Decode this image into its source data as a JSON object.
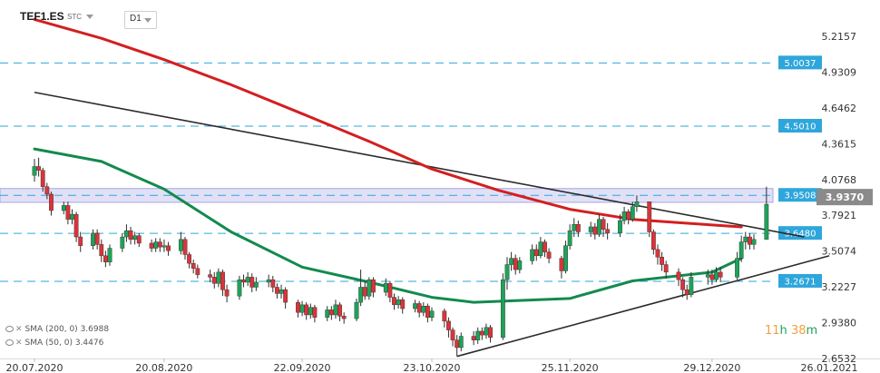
{
  "header": {
    "symbol": "TEF1.ES",
    "price_type": "STC",
    "timeframe": "D1"
  },
  "legend": [
    {
      "label": "SMA (200, 0)",
      "value": "3.6988"
    },
    {
      "label": "SMA (50, 0)",
      "value": "3.4476"
    }
  ],
  "countdown": {
    "hours": "11",
    "h_unit": "h",
    "minutes": "38",
    "m_unit": "m"
  },
  "colors": {
    "up": "#1ea25a",
    "down": "#d9343a",
    "sma200": "#d31f1f",
    "sma50": "#138a4e",
    "level_line": "#2ea6db",
    "level_label_bg": "#2ea6db",
    "zone": "#c9c7ef",
    "current_price_bg": "#8a8a8a"
  },
  "chart_data": {
    "type": "candlestick",
    "symbol": "TEF1.ES",
    "timeframe": "D1",
    "y_ticks": [
      "5.2157",
      "4.9309",
      "4.6462",
      "4.3615",
      "4.0768",
      "3.7921",
      "3.5074",
      "3.2227",
      "2.9380",
      "2.6532"
    ],
    "ylim": [
      2.6532,
      5.36
    ],
    "x_ticks": [
      "20.07.2020",
      "20.08.2020",
      "22.09.2020",
      "23.10.2020",
      "25.11.2020",
      "29.12.2020",
      "26.01.2021"
    ],
    "current_price": "3.9370",
    "levels": [
      {
        "value": 5.0037,
        "label": "5.0037"
      },
      {
        "value": 4.501,
        "label": "4.5010"
      },
      {
        "value": 3.9508,
        "label": "3.9508"
      },
      {
        "value": 3.648,
        "label": "3.6480"
      },
      {
        "value": 3.2671,
        "label": "3.2671"
      }
    ],
    "zone": [
      3.895,
      4.005
    ],
    "trendlines": [
      {
        "name": "descending",
        "from": [
          "2020-07-20",
          4.77
        ],
        "to": [
          "2021-01-20",
          3.62
        ]
      },
      {
        "name": "ascending",
        "from": [
          "2020-10-29",
          2.67
        ],
        "to": [
          "2021-01-26",
          3.47
        ]
      }
    ],
    "series": [
      {
        "name": "SMA (200, 0)",
        "points": [
          [
            "2020-07-20",
            5.35
          ],
          [
            "2020-08-05",
            5.2
          ],
          [
            "2020-08-20",
            5.03
          ],
          [
            "2020-09-05",
            4.83
          ],
          [
            "2020-09-22",
            4.6
          ],
          [
            "2020-10-08",
            4.38
          ],
          [
            "2020-10-23",
            4.16
          ],
          [
            "2020-11-08",
            3.99
          ],
          [
            "2020-11-25",
            3.84
          ],
          [
            "2020-12-10",
            3.76
          ],
          [
            "2020-12-29",
            3.715
          ],
          [
            "2021-01-05",
            3.7
          ]
        ]
      },
      {
        "name": "SMA (50, 0)",
        "points": [
          [
            "2020-07-20",
            4.32
          ],
          [
            "2020-08-05",
            4.22
          ],
          [
            "2020-08-20",
            4.0
          ],
          [
            "2020-09-05",
            3.66
          ],
          [
            "2020-09-22",
            3.38
          ],
          [
            "2020-10-08",
            3.26
          ],
          [
            "2020-10-23",
            3.14
          ],
          [
            "2020-11-02",
            3.1
          ],
          [
            "2020-11-25",
            3.13
          ],
          [
            "2020-12-10",
            3.27
          ],
          [
            "2020-12-29",
            3.34
          ],
          [
            "2021-01-05",
            3.45
          ]
        ]
      }
    ],
    "candles": [
      [
        "2020-07-20",
        4.11,
        4.18,
        4.24,
        4.06
      ],
      [
        "2020-07-21",
        4.18,
        4.15,
        4.25,
        4.1
      ],
      [
        "2020-07-22",
        4.15,
        4.02,
        4.17,
        3.98
      ],
      [
        "2020-07-23",
        4.02,
        3.96,
        4.05,
        3.92
      ],
      [
        "2020-07-24",
        3.96,
        3.83,
        3.98,
        3.79
      ],
      [
        "2020-07-27",
        3.83,
        3.87,
        3.9,
        3.8
      ],
      [
        "2020-07-28",
        3.87,
        3.76,
        3.9,
        3.72
      ],
      [
        "2020-07-29",
        3.76,
        3.8,
        3.84,
        3.72
      ],
      [
        "2020-07-30",
        3.8,
        3.62,
        3.82,
        3.58
      ],
      [
        "2020-07-31",
        3.62,
        3.55,
        3.66,
        3.5
      ],
      [
        "2020-08-03",
        3.55,
        3.65,
        3.68,
        3.52
      ],
      [
        "2020-08-04",
        3.65,
        3.56,
        3.68,
        3.52
      ],
      [
        "2020-08-05",
        3.56,
        3.47,
        3.6,
        3.42
      ],
      [
        "2020-08-06",
        3.47,
        3.42,
        3.51,
        3.38
      ],
      [
        "2020-08-07",
        3.42,
        3.53,
        3.56,
        3.39
      ],
      [
        "2020-08-10",
        3.53,
        3.62,
        3.65,
        3.5
      ],
      [
        "2020-08-11",
        3.62,
        3.67,
        3.72,
        3.58
      ],
      [
        "2020-08-12",
        3.67,
        3.6,
        3.7,
        3.56
      ],
      [
        "2020-08-13",
        3.6,
        3.63,
        3.66,
        3.56
      ],
      [
        "2020-08-14",
        3.63,
        3.57,
        3.65,
        3.54
      ],
      [
        "2020-08-17",
        3.57,
        3.53,
        3.6,
        3.5
      ],
      [
        "2020-08-18",
        3.53,
        3.58,
        3.61,
        3.5
      ],
      [
        "2020-08-19",
        3.58,
        3.54,
        3.61,
        3.5
      ],
      [
        "2020-08-20",
        3.54,
        3.55,
        3.6,
        3.5
      ],
      [
        "2020-08-21",
        3.55,
        3.51,
        3.58,
        3.47
      ],
      [
        "2020-08-24",
        3.51,
        3.6,
        3.66,
        3.48
      ],
      [
        "2020-08-25",
        3.6,
        3.48,
        3.62,
        3.44
      ],
      [
        "2020-08-26",
        3.48,
        3.41,
        3.5,
        3.37
      ],
      [
        "2020-08-27",
        3.41,
        3.37,
        3.44,
        3.33
      ],
      [
        "2020-08-28",
        3.37,
        3.32,
        3.4,
        3.29
      ],
      [
        "2020-08-31",
        3.32,
        3.3,
        3.36,
        3.26
      ],
      [
        "2020-09-01",
        3.3,
        3.25,
        3.34,
        3.21
      ],
      [
        "2020-09-02",
        3.25,
        3.34,
        3.37,
        3.22
      ],
      [
        "2020-09-03",
        3.34,
        3.2,
        3.36,
        3.15
      ],
      [
        "2020-09-04",
        3.2,
        3.15,
        3.24,
        3.1
      ],
      [
        "2020-09-07",
        3.15,
        3.28,
        3.31,
        3.12
      ],
      [
        "2020-09-08",
        3.28,
        3.26,
        3.32,
        3.22
      ],
      [
        "2020-09-09",
        3.26,
        3.3,
        3.34,
        3.23
      ],
      [
        "2020-09-10",
        3.3,
        3.22,
        3.33,
        3.18
      ],
      [
        "2020-09-11",
        3.22,
        3.26,
        3.3,
        3.19
      ],
      [
        "2020-09-14",
        3.26,
        3.28,
        3.32,
        3.22
      ],
      [
        "2020-09-15",
        3.28,
        3.22,
        3.31,
        3.18
      ],
      [
        "2020-09-16",
        3.22,
        3.17,
        3.25,
        3.13
      ],
      [
        "2020-09-17",
        3.17,
        3.2,
        3.24,
        3.13
      ],
      [
        "2020-09-18",
        3.2,
        3.1,
        3.22,
        3.05
      ],
      [
        "2020-09-21",
        3.1,
        3.02,
        3.12,
        2.98
      ],
      [
        "2020-09-22",
        3.02,
        3.08,
        3.11,
        2.99
      ],
      [
        "2020-09-23",
        3.08,
        3.0,
        3.1,
        2.96
      ],
      [
        "2020-09-24",
        3.0,
        3.06,
        3.09,
        2.97
      ],
      [
        "2020-09-25",
        3.06,
        2.98,
        3.08,
        2.94
      ],
      [
        "2020-09-28",
        2.98,
        3.04,
        3.07,
        2.95
      ],
      [
        "2020-09-29",
        3.04,
        3.0,
        3.07,
        2.96
      ],
      [
        "2020-09-30",
        3.0,
        3.08,
        3.12,
        2.97
      ],
      [
        "2020-10-01",
        3.08,
        2.99,
        3.1,
        2.95
      ],
      [
        "2020-10-02",
        2.99,
        2.97,
        3.02,
        2.93
      ],
      [
        "2020-10-05",
        2.97,
        3.1,
        3.13,
        2.95
      ],
      [
        "2020-10-06",
        3.1,
        3.22,
        3.36,
        3.07
      ],
      [
        "2020-10-07",
        3.22,
        3.15,
        3.27,
        3.12
      ],
      [
        "2020-10-08",
        3.15,
        3.28,
        3.3,
        3.12
      ],
      [
        "2020-10-09",
        3.28,
        3.18,
        3.3,
        3.14
      ],
      [
        "2020-10-12",
        3.18,
        3.25,
        3.29,
        3.15
      ],
      [
        "2020-10-13",
        3.25,
        3.14,
        3.27,
        3.1
      ],
      [
        "2020-10-14",
        3.14,
        3.08,
        3.17,
        3.04
      ],
      [
        "2020-10-15",
        3.08,
        3.12,
        3.15,
        3.05
      ],
      [
        "2020-10-16",
        3.12,
        3.05,
        3.14,
        3.01
      ],
      [
        "2020-10-19",
        3.05,
        3.09,
        3.12,
        3.02
      ],
      [
        "2020-10-20",
        3.09,
        3.02,
        3.11,
        2.98
      ],
      [
        "2020-10-21",
        3.02,
        3.07,
        3.1,
        2.99
      ],
      [
        "2020-10-22",
        3.07,
        2.98,
        3.09,
        2.94
      ],
      [
        "2020-10-23",
        2.98,
        3.03,
        3.06,
        2.95
      ],
      [
        "2020-10-26",
        3.03,
        2.95,
        3.05,
        2.9
      ],
      [
        "2020-10-27",
        2.95,
        2.88,
        2.98,
        2.82
      ],
      [
        "2020-10-28",
        2.88,
        2.8,
        2.9,
        2.75
      ],
      [
        "2020-10-29",
        2.8,
        2.74,
        2.84,
        2.67
      ],
      [
        "2020-10-30",
        2.74,
        2.83,
        2.86,
        2.71
      ],
      [
        "2020-11-02",
        2.83,
        2.8,
        2.87,
        2.76
      ],
      [
        "2020-11-03",
        2.8,
        2.87,
        2.9,
        2.77
      ],
      [
        "2020-11-04",
        2.87,
        2.84,
        2.9,
        2.8
      ],
      [
        "2020-11-05",
        2.84,
        2.9,
        2.93,
        2.81
      ],
      [
        "2020-11-06",
        2.9,
        2.82,
        2.92,
        2.78
      ],
      [
        "2020-11-09",
        2.82,
        3.28,
        3.33,
        2.8
      ],
      [
        "2020-11-10",
        3.28,
        3.4,
        3.46,
        3.2
      ],
      [
        "2020-11-11",
        3.4,
        3.45,
        3.5,
        3.35
      ],
      [
        "2020-11-12",
        3.45,
        3.36,
        3.48,
        3.32
      ],
      [
        "2020-11-13",
        3.36,
        3.43,
        3.46,
        3.33
      ],
      [
        "2020-11-16",
        3.43,
        3.52,
        3.56,
        3.4
      ],
      [
        "2020-11-17",
        3.52,
        3.47,
        3.56,
        3.43
      ],
      [
        "2020-11-18",
        3.47,
        3.58,
        3.62,
        3.45
      ],
      [
        "2020-11-19",
        3.58,
        3.5,
        3.6,
        3.46
      ],
      [
        "2020-11-20",
        3.5,
        3.45,
        3.53,
        3.41
      ],
      [
        "2020-11-23",
        3.45,
        3.35,
        3.47,
        3.29
      ],
      [
        "2020-11-24",
        3.35,
        3.55,
        3.59,
        3.33
      ],
      [
        "2020-11-25",
        3.55,
        3.67,
        3.72,
        3.52
      ],
      [
        "2020-11-26",
        3.67,
        3.72,
        3.77,
        3.62
      ],
      [
        "2020-11-27",
        3.72,
        3.66,
        3.75,
        3.62
      ],
      [
        "2020-11-30",
        3.66,
        3.7,
        3.74,
        3.62
      ],
      [
        "2020-12-01",
        3.7,
        3.64,
        3.73,
        3.6
      ],
      [
        "2020-12-02",
        3.64,
        3.76,
        3.8,
        3.62
      ],
      [
        "2020-12-03",
        3.76,
        3.68,
        3.78,
        3.62
      ],
      [
        "2020-12-04",
        3.68,
        3.65,
        3.73,
        3.6
      ],
      [
        "2020-12-07",
        3.65,
        3.75,
        3.8,
        3.62
      ],
      [
        "2020-12-08",
        3.75,
        3.82,
        3.86,
        3.72
      ],
      [
        "2020-12-09",
        3.82,
        3.76,
        3.84,
        3.72
      ],
      [
        "2020-12-10",
        3.76,
        3.86,
        3.9,
        3.74
      ],
      [
        "2020-12-11",
        3.86,
        3.9,
        3.95,
        3.82
      ],
      [
        "2020-12-14",
        3.9,
        3.66,
        3.9,
        3.62
      ],
      [
        "2020-12-15",
        3.66,
        3.52,
        3.68,
        3.48
      ],
      [
        "2020-12-16",
        3.52,
        3.46,
        3.56,
        3.4
      ],
      [
        "2020-12-17",
        3.46,
        3.4,
        3.5,
        3.35
      ],
      [
        "2020-12-18",
        3.4,
        3.34,
        3.43,
        3.29
      ],
      [
        "2020-12-21",
        3.34,
        3.28,
        3.37,
        3.23
      ],
      [
        "2020-12-22",
        3.28,
        3.2,
        3.3,
        3.14
      ],
      [
        "2020-12-23",
        3.2,
        3.16,
        3.24,
        3.12
      ],
      [
        "2020-12-24",
        3.16,
        3.3,
        3.34,
        3.14
      ],
      [
        "2020-12-28",
        3.3,
        3.32,
        3.36,
        3.24
      ],
      [
        "2020-12-29",
        3.32,
        3.28,
        3.36,
        3.24
      ],
      [
        "2020-12-30",
        3.28,
        3.34,
        3.38,
        3.26
      ],
      [
        "2020-12-31",
        3.34,
        3.3,
        3.38,
        3.26
      ],
      [
        "2021-01-04",
        3.3,
        3.45,
        3.5,
        3.28
      ],
      [
        "2021-01-05",
        3.45,
        3.58,
        3.63,
        3.42
      ],
      [
        "2021-01-06",
        3.58,
        3.62,
        3.66,
        3.52
      ],
      [
        "2021-01-07",
        3.62,
        3.56,
        3.65,
        3.52
      ],
      [
        "2021-01-08",
        3.56,
        3.6,
        3.64,
        3.52
      ],
      [
        "2021-01-11",
        3.6,
        3.88,
        4.02,
        3.78
      ]
    ]
  }
}
